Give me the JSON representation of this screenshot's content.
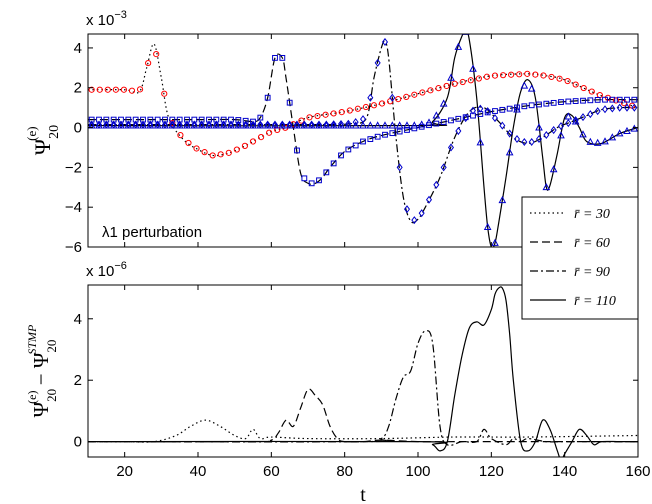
{
  "chart_data": [
    {
      "type": "line",
      "title": "",
      "xlabel": "",
      "ylabel_main": "Ψ",
      "ylabel_sub": "20",
      "ylabel_sup": "(e)",
      "exponent_label": "x 10",
      "exponent_power": "−3",
      "annotation": "λ1 perturbation",
      "xlim": [
        10,
        160
      ],
      "ylim": [
        -6,
        4.7
      ],
      "yticks": [
        -6,
        -4,
        -2,
        0,
        2,
        4
      ],
      "ytick_labels": [
        "−6",
        "−4",
        "−2",
        "0",
        "2",
        "4"
      ],
      "xticks": [
        20,
        40,
        60,
        80,
        100,
        120,
        140,
        160
      ],
      "legend": {
        "placement": "bottom-right",
        "entries": [
          {
            "text": "r̄ = 30",
            "style": "dotted"
          },
          {
            "text": "r̄ = 60",
            "style": "dashed"
          },
          {
            "text": "r̄ = 90",
            "style": "dashdot"
          },
          {
            "text": "r̄ = 110",
            "style": "solid"
          }
        ]
      },
      "series": [
        {
          "style": "dotted",
          "color": "#000000",
          "x": [
            10,
            20,
            24,
            26,
            28,
            30,
            32,
            36,
            40,
            44,
            48,
            52,
            56,
            60,
            64,
            70,
            80,
            90,
            100,
            110,
            120,
            130,
            135,
            140,
            150,
            160
          ],
          "y": [
            1.9,
            1.9,
            1.8,
            3,
            4.2,
            2.5,
            0.5,
            -0.6,
            -1.1,
            -1.4,
            -1.3,
            -1.0,
            -0.6,
            -0.2,
            0.0,
            0.5,
            0.8,
            1.2,
            1.7,
            2.2,
            2.6,
            2.7,
            2.6,
            2.4,
            1.6,
            1.0
          ]
        },
        {
          "style": "dashed",
          "color": "#000000",
          "x": [
            10,
            40,
            50,
            55,
            57,
            59,
            61,
            63,
            64,
            66,
            68,
            70,
            72,
            74,
            76,
            80,
            85,
            90,
            100,
            110,
            120,
            130,
            140,
            150,
            160
          ],
          "y": [
            0.4,
            0.4,
            0.4,
            0.3,
            0.5,
            1.5,
            3.5,
            3.5,
            2.5,
            0.0,
            -2.3,
            -2.8,
            -2.8,
            -2.5,
            -2.0,
            -1.2,
            -0.7,
            -0.4,
            0.0,
            0.4,
            0.8,
            1.1,
            1.3,
            1.4,
            1.4
          ]
        },
        {
          "style": "dashdot",
          "color": "#000000",
          "x": [
            10,
            60,
            75,
            82,
            86,
            88,
            90,
            91,
            92,
            94,
            96,
            98,
            100,
            102,
            106,
            110,
            114,
            118,
            122,
            126,
            130,
            134,
            138,
            142,
            146,
            150,
            155,
            160
          ],
          "y": [
            0.15,
            0.15,
            0.15,
            0.2,
            0.5,
            2.5,
            4.0,
            4.3,
            3.5,
            -0.5,
            -3.5,
            -4.7,
            -4.6,
            -4.0,
            -2.5,
            -0.5,
            0.8,
            1.0,
            0.3,
            -0.5,
            -0.8,
            -0.5,
            0.0,
            0.3,
            0.6,
            0.9,
            1.0,
            1.0
          ]
        },
        {
          "style": "solid",
          "color": "#000000",
          "x": [
            10,
            100,
            104,
            108,
            110,
            112,
            113,
            114,
            116,
            118,
            119,
            120,
            121,
            122,
            124,
            126,
            128,
            130,
            132,
            134,
            135,
            136,
            138,
            140,
            142,
            144,
            146,
            150,
            155,
            160
          ],
          "y": [
            0.1,
            0.1,
            0.3,
            1.5,
            3.5,
            4.6,
            4.8,
            4.4,
            1.5,
            -3.0,
            -5.0,
            -6.0,
            -5.8,
            -4.8,
            -2.5,
            0.0,
            1.8,
            2.4,
            1.5,
            -1.5,
            -3.0,
            -2.9,
            -1.3,
            0.5,
            0.6,
            0.0,
            -0.7,
            -0.8,
            -0.3,
            0.0
          ]
        }
      ],
      "marker_series": [
        {
          "marker": "circle",
          "color": "#ff0000",
          "follows": "dotted"
        },
        {
          "marker": "square",
          "color": "#0000cc",
          "follows": "dashed"
        },
        {
          "marker": "diamond",
          "color": "#0000cc",
          "follows": "dashdot"
        },
        {
          "marker": "triangle",
          "color": "#0000cc",
          "follows": "solid"
        }
      ]
    },
    {
      "type": "line",
      "title": "",
      "xlabel": "t",
      "ylabel_main": "Ψ",
      "ylabel_sub": "20",
      "ylabel_sup": "(e)",
      "ylabel_minus": " − Ψ",
      "ylabel_sub2": "20",
      "ylabel_sup2": "STMP",
      "exponent_label": "x 10",
      "exponent_power": "−6",
      "xlim": [
        10,
        160
      ],
      "ylim": [
        -0.5,
        5.1
      ],
      "yticks": [
        0,
        2,
        4
      ],
      "xticks": [
        20,
        40,
        60,
        80,
        100,
        120,
        140,
        160
      ],
      "series": [
        {
          "style": "dotted",
          "color": "#000000",
          "x": [
            10,
            20,
            28,
            34,
            38,
            42,
            46,
            50,
            53,
            55,
            57,
            60,
            70,
            90,
            110,
            130,
            160
          ],
          "y": [
            0,
            0,
            0,
            0.2,
            0.5,
            0.7,
            0.5,
            0.2,
            0.1,
            0.4,
            0.1,
            0.15,
            0.1,
            0.1,
            0.15,
            0.15,
            0.2
          ]
        },
        {
          "style": "dashed",
          "color": "#000000",
          "x": [
            10,
            55,
            60,
            62,
            64,
            66,
            68,
            70,
            72,
            74,
            76,
            78,
            80,
            85,
            90,
            100,
            110,
            120,
            130,
            140,
            150,
            160
          ],
          "y": [
            0,
            0,
            0.05,
            0.3,
            0.7,
            0.5,
            1.1,
            1.7,
            1.5,
            1.2,
            0.5,
            0.1,
            0.0,
            0.0,
            0.05,
            0.0,
            0.0,
            0.0,
            0.0,
            0.0,
            0.0,
            0.0
          ]
        },
        {
          "style": "dashdot",
          "color": "#000000",
          "x": [
            10,
            85,
            90,
            92,
            94,
            96,
            98,
            100,
            102,
            104,
            106,
            108,
            112,
            116,
            118,
            120,
            124,
            126,
            128,
            130,
            135,
            140,
            150,
            160
          ],
          "y": [
            0,
            0,
            0.1,
            0.5,
            1.4,
            2.1,
            2.3,
            3.2,
            3.6,
            3.2,
            0.5,
            -0.1,
            0.0,
            0.0,
            0.4,
            0.1,
            -0.1,
            0.1,
            0.0,
            0.1,
            0.0,
            0.0,
            0.0,
            0.0
          ]
        },
        {
          "style": "solid",
          "color": "#000000",
          "x": [
            10,
            100,
            104,
            106,
            108,
            110,
            112,
            114,
            116,
            118,
            120,
            121,
            122,
            123,
            124,
            125,
            126,
            128,
            130,
            132,
            134,
            136,
            138,
            139,
            140,
            142,
            144,
            146,
            148,
            150,
            155,
            160
          ],
          "y": [
            0,
            0,
            -0.1,
            -0.3,
            0.0,
            1.5,
            2.8,
            3.7,
            3.9,
            3.8,
            4.3,
            4.8,
            5.0,
            5.0,
            4.6,
            3.5,
            2.0,
            0.0,
            -0.3,
            0.0,
            0.7,
            0.4,
            -0.3,
            -0.6,
            -0.4,
            0.0,
            0.4,
            0.2,
            -0.1,
            0.0,
            0.0,
            0.0
          ]
        }
      ]
    }
  ]
}
